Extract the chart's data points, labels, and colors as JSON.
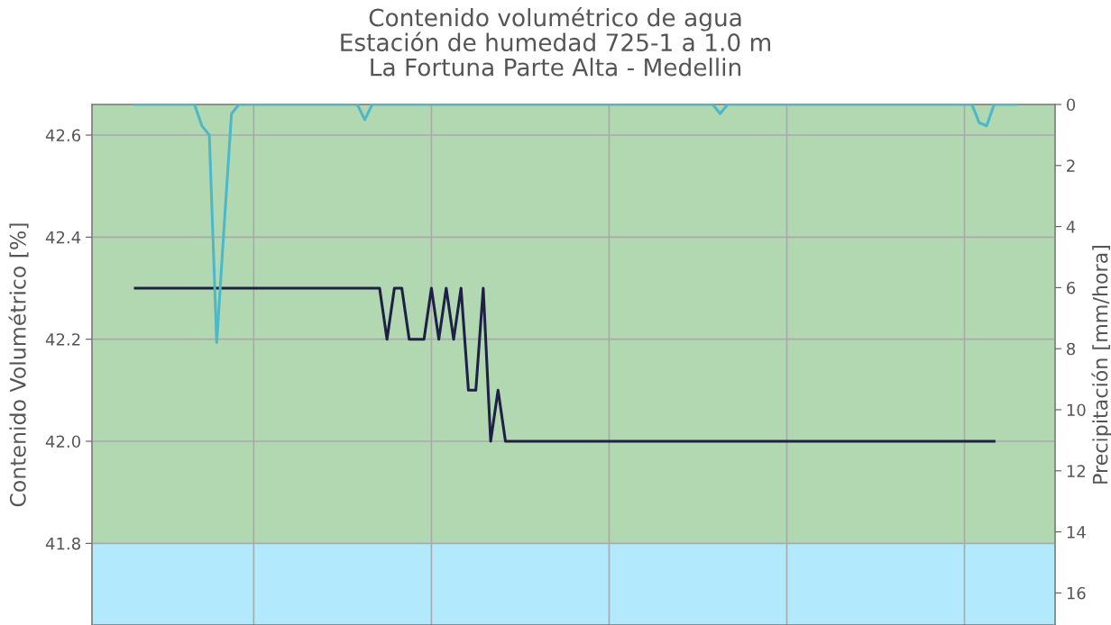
{
  "chart_data": {
    "type": "line",
    "title": "Contenido volumétrico de agua\nEstación de humedad 725-1 a 1.0 m\nLa Fortuna Parte Alta - Medellin",
    "ylabel": "Contenido Volumétrico [%]",
    "y2label": "Precipitación [mm/hora]",
    "categories": [
      null,
      null,
      null,
      null,
      null,
      null,
      null,
      null,
      null,
      null,
      null,
      null,
      null,
      null,
      null,
      null,
      null,
      null,
      null,
      null,
      null,
      null,
      null,
      null,
      null,
      null,
      null,
      null,
      null,
      null,
      null,
      null,
      null,
      null,
      null,
      null,
      null,
      null,
      null,
      null,
      null,
      null,
      null,
      null,
      null,
      null,
      null,
      null,
      null,
      null,
      null,
      null,
      null,
      null,
      null,
      null,
      null,
      null,
      null,
      null,
      null,
      null,
      null,
      null,
      null,
      null,
      null,
      null,
      null,
      null,
      null,
      null,
      null,
      null,
      null,
      null,
      null,
      null,
      null,
      null,
      null,
      null,
      null,
      null,
      null,
      null,
      null,
      null,
      null,
      null,
      null,
      null,
      null,
      null,
      null,
      null,
      null,
      null,
      null,
      null,
      null,
      null,
      null,
      null,
      null,
      null,
      null,
      null,
      null,
      null,
      null,
      null,
      null,
      null,
      null,
      null,
      null,
      null,
      null,
      null
    ],
    "ylim": [
      41.64,
      42.66
    ],
    "yticks": [
      {
        "value": 41.8,
        "label": "41.8"
      },
      {
        "value": 42.0,
        "label": "42.0"
      },
      {
        "value": 42.2,
        "label": "42.2"
      },
      {
        "value": 42.4,
        "label": "42.4"
      },
      {
        "value": 42.6,
        "label": "42.6"
      }
    ],
    "y2lim": [
      17.05,
      0
    ],
    "y2ticks": [
      0,
      2,
      4,
      6,
      8,
      10,
      12,
      14,
      16
    ],
    "grid": true,
    "marker": "none",
    "line_style": "solid",
    "bands": [
      {
        "axis": "y",
        "from": 41.8,
        "to": 42.66,
        "color": "#b2d8b2"
      },
      {
        "axis": "y",
        "from": 41.64,
        "to": 41.8,
        "color": "#b3e9fc"
      }
    ],
    "series": [
      {
        "color": "#1e2046",
        "values": [
          42.3,
          42.3,
          42.3,
          42.3,
          42.3,
          42.3,
          42.3,
          42.3,
          42.3,
          42.3,
          42.3,
          42.3,
          42.3,
          42.3,
          42.3,
          42.3,
          42.3,
          42.3,
          42.3,
          42.3,
          42.3,
          42.3,
          42.3,
          42.3,
          42.3,
          42.3,
          42.3,
          42.3,
          42.3,
          42.3,
          42.3,
          42.3,
          42.3,
          42.3,
          42.2,
          42.3,
          42.3,
          42.2,
          42.2,
          42.2,
          42.3,
          42.2,
          42.3,
          42.2,
          42.3,
          42.1,
          42.1,
          42.3,
          42.0,
          42.1,
          42.0,
          42.0,
          42.0,
          42.0,
          42.0,
          42.0,
          42.0,
          42.0,
          42.0,
          42.0,
          42.0,
          42.0,
          42.0,
          42.0,
          42.0,
          42.0,
          42.0,
          42.0,
          42.0,
          42.0,
          42.0,
          42.0,
          42.0,
          42.0,
          42.0,
          42.0,
          42.0,
          42.0,
          42.0,
          42.0,
          42.0,
          42.0,
          42.0,
          42.0,
          42.0,
          42.0,
          42.0,
          42.0,
          42.0,
          42.0,
          42.0,
          42.0,
          42.0,
          42.0,
          42.0,
          42.0,
          42.0,
          42.0,
          42.0,
          42.0,
          42.0,
          42.0,
          42.0,
          42.0,
          42.0,
          42.0,
          42.0,
          42.0,
          42.0,
          42.0,
          42.0,
          42.0,
          42.0,
          42.0,
          42.0,
          42.0,
          42.0,
          null,
          null,
          null
        ]
      },
      {
        "color": "#4cb8ca",
        "axis": "y2",
        "values": [
          0,
          0,
          0,
          0,
          0,
          0,
          0,
          0,
          0,
          0.7,
          1.0,
          7.8,
          4.0,
          0.3,
          0,
          0,
          0,
          0,
          0,
          0,
          0,
          0,
          0,
          0,
          0,
          0,
          0,
          0,
          0,
          0,
          0,
          0.5,
          0,
          0,
          0,
          0,
          0,
          0,
          0,
          0,
          0,
          0,
          0,
          0,
          0,
          0,
          0,
          0,
          0,
          0,
          0,
          0,
          0,
          0,
          0,
          0,
          0,
          0,
          0,
          0,
          0,
          0,
          0,
          0,
          0,
          0,
          0,
          0,
          0,
          0,
          0,
          0,
          0,
          0,
          0,
          0,
          0,
          0,
          0,
          0.3,
          0,
          0,
          0,
          0,
          0,
          0,
          0,
          0,
          0,
          0,
          0,
          0,
          0,
          0,
          0,
          0,
          0,
          0,
          0,
          0,
          0,
          0,
          0,
          0,
          0,
          0,
          0,
          0,
          0,
          0,
          0,
          0,
          0,
          0,
          0.6,
          0.7,
          0,
          0,
          0,
          0
        ]
      }
    ]
  }
}
